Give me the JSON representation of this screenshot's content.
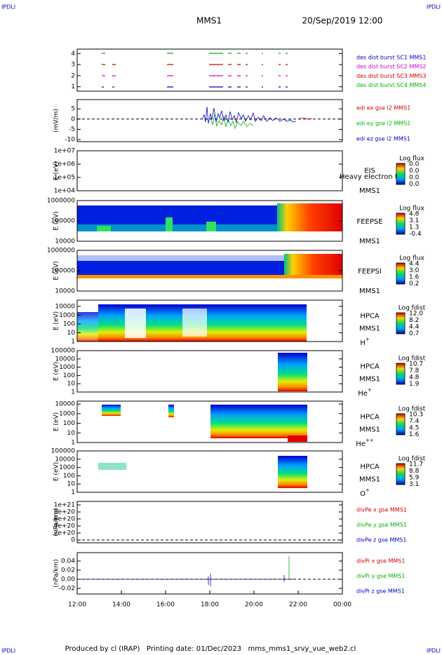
{
  "header": {
    "corner_left": "IPDLI",
    "corner_right": "IPDLI",
    "spacecraft": "MMS1",
    "date": "20/Sep/2019 12:00"
  },
  "footer": {
    "corner_left": "IPDLI",
    "corner_right": "IPDLI",
    "credit": "Produced by cl (IRAP)   Printing date: 01/Dec/2023   mms_mms1_srvy_vue_web2.cl"
  },
  "chart_data": {
    "type": "multipanel",
    "x_labels": [
      "12:00",
      "14:00",
      "16:00",
      "18:00",
      "20:00",
      "22:00",
      "00:00"
    ],
    "panels": [
      {
        "ylim": [
          0.6,
          4.4
        ],
        "yticks": [
          1,
          2,
          3,
          4
        ],
        "legend": [
          {
            "name": "des dist burst SC1 MMS1",
            "color": "#0000c8"
          },
          {
            "name": "des dist burst SC2 MMS2",
            "color": "#d200d2"
          },
          {
            "name": "des dist burst SC3 MMS3",
            "color": "#d20000"
          },
          {
            "name": "des dist burst SC4 MMS4",
            "color": "#00b400"
          }
        ]
      },
      {
        "ylabel": "(mV/m)",
        "ylim": [
          -11,
          9.5
        ],
        "yticks": [
          5,
          0,
          -5,
          -10
        ],
        "reference_line": 0,
        "legend": [
          {
            "name": "edi ex gse l2 MMS1",
            "color": "#d20000"
          },
          {
            "name": "edi ey gse l2 MMS1",
            "color": "#00b400"
          },
          {
            "name": "edi ez gse l2 MMS1",
            "color": "#0000c8"
          }
        ]
      },
      {
        "ylabel": "E (eV)",
        "log": true,
        "ylim": [
          10000,
          10000000
        ],
        "yticks": [
          {
            "value": 10000000,
            "label": "1e+07"
          },
          {
            "value": 1000000,
            "label": "1e+06"
          },
          {
            "value": 100000,
            "label": "1e+05"
          },
          {
            "value": 10000,
            "label": "1e+04"
          }
        ],
        "side_labels": [
          "EIS",
          "Heavy electron to",
          "MMS1"
        ],
        "colorbar": {
          "title": "Log flux",
          "labels": [
            "0.0",
            "0.0",
            "0.0",
            "0.0"
          ]
        }
      },
      {
        "ylabel": "E (eV)",
        "log": true,
        "ylim": [
          10000,
          1000000
        ],
        "yticks": [
          1000000,
          100000,
          10000
        ],
        "side_labels": [
          "FEEPSE",
          "MMS1"
        ],
        "colorbar": {
          "title": "Log flux",
          "labels": [
            "4.8",
            "3.1",
            "1.3",
            "-0.4"
          ]
        }
      },
      {
        "ylabel": "E (eV)",
        "log": true,
        "ylim": [
          10000,
          1000000
        ],
        "yticks": [
          1000000,
          100000,
          10000
        ],
        "side_labels": [
          "FEEPSI",
          "MMS1"
        ],
        "colorbar": {
          "title": "Log flux",
          "labels": [
            "4.4",
            "3.0",
            "1.6",
            "0.2"
          ]
        }
      },
      {
        "ylabel": "E (eV)",
        "log": true,
        "ylim": [
          1,
          50000
        ],
        "yticks": [
          10000,
          1000,
          100,
          10,
          1
        ],
        "side_labels": [
          "HPCA",
          "MMS1"
        ],
        "ion": {
          "base": "H",
          "charge": "+"
        },
        "colorbar": {
          "title": "Log fdist",
          "labels": [
            "12.0",
            "8.2",
            "4.4",
            "0.7"
          ]
        }
      },
      {
        "ylabel": "E (eV)",
        "log": true,
        "ylim": [
          1,
          100000
        ],
        "yticks": [
          100000,
          10000,
          1000,
          100,
          10,
          1
        ],
        "side_labels": [
          "HPCA",
          "MMS1"
        ],
        "ion": {
          "base": "He",
          "charge": "+"
        },
        "colorbar": {
          "title": "Log fdist",
          "labels": [
            "10.7",
            "7.8",
            "4.8",
            "1.9"
          ]
        }
      },
      {
        "ylabel": "E (eV)",
        "log": true,
        "ylim": [
          1,
          20000
        ],
        "yticks": [
          10000,
          1000,
          100,
          10,
          1
        ],
        "side_labels": [
          "HPCA",
          "MMS1"
        ],
        "ion": {
          "base": "He",
          "charge": "++"
        },
        "colorbar": {
          "title": "Log fdist",
          "labels": [
            "10.3",
            "7.4",
            "4.5",
            "1.6"
          ]
        }
      },
      {
        "ylabel": "E (eV)",
        "log": true,
        "ylim": [
          1,
          100000
        ],
        "yticks": [
          100000,
          10000,
          1000,
          100,
          10,
          1
        ],
        "side_labels": [
          "HPCA",
          "MMS1"
        ],
        "ion": {
          "base": "O",
          "charge": "+"
        },
        "colorbar": {
          "title": "Log fdist",
          "labels": [
            "11.7",
            "8.8",
            "5.9",
            "3.1"
          ]
        }
      },
      {
        "ylabel": "(nPa/km)",
        "ylim": [
          -80000000000000000000,
          1100000000000000000000
        ],
        "reference_line": 0,
        "yticks": [
          {
            "value": 1000000000000000000000,
            "label": "1e+21"
          },
          {
            "value": 800000000000000000000,
            "label": "8e+20"
          },
          {
            "value": 600000000000000000000,
            "label": "6e+20"
          },
          {
            "value": 400000000000000000000,
            "label": "4e+20"
          },
          {
            "value": 200000000000000000000,
            "label": "2e+20"
          },
          0
        ],
        "legend": [
          {
            "name": "divPe x gse MMS1",
            "color": "#d20000"
          },
          {
            "name": "divPe y gse MMS1",
            "color": "#00b400"
          },
          {
            "name": "divPe z gse MMS1",
            "color": "#0000c8"
          }
        ]
      },
      {
        "ylabel": "(nPa/km)",
        "ylim": [
          -0.0323,
          0.0585
        ],
        "reference_line": 0,
        "yticks": [
          0.04,
          0.02,
          {
            "value": 0,
            "label": "0.00"
          },
          -0.02
        ],
        "legend": [
          {
            "name": "divPi x gse MMS1",
            "color": "#d20000"
          },
          {
            "name": "divPi y gse MMS1",
            "color": "#00b400"
          },
          {
            "name": "divPi z gse MMS1",
            "color": "#0000c8"
          }
        ]
      }
    ]
  }
}
